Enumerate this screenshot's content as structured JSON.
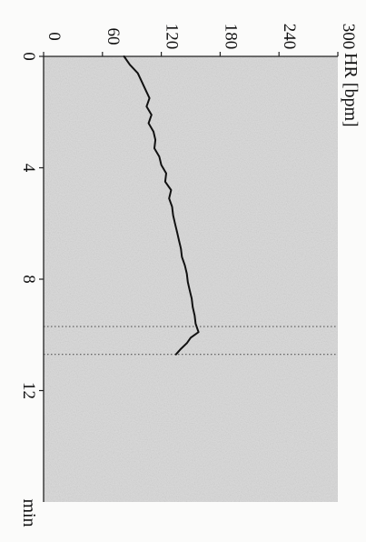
{
  "chart_data": {
    "type": "line",
    "title": "",
    "xlabel": "min",
    "ylabel": "HR [bpm]",
    "xlim": [
      0,
      16
    ],
    "ylim": [
      0,
      300
    ],
    "x_ticks": [
      0,
      4,
      8,
      12
    ],
    "y_ticks": [
      0,
      60,
      120,
      180,
      240,
      300
    ],
    "x_tick_labels": [
      "0",
      "4",
      "8",
      "12"
    ],
    "y_tick_labels": [
      "0",
      "60",
      "120",
      "180",
      "240",
      "300"
    ],
    "grid": false,
    "rotated": "90deg-clockwise",
    "vertical_markers_min": [
      9.7,
      10.7
    ],
    "colors": {
      "plot_background": "#dcdcdc",
      "line": "#111111",
      "axis": "#222222",
      "marker": "#555555"
    },
    "series": [
      {
        "x": [
          0,
          0.3,
          0.6,
          0.9,
          1.2,
          1.5,
          1.8,
          2.1,
          2.4,
          2.7,
          3.0,
          3.3,
          3.6,
          3.9,
          4.2,
          4.5,
          4.8,
          5.1,
          5.4,
          5.7,
          6.0,
          6.3,
          6.6,
          6.9,
          7.2,
          7.5,
          7.8,
          8.1,
          8.4,
          8.7,
          9.0,
          9.3,
          9.6,
          9.9,
          10.1,
          10.3,
          10.5,
          10.7
        ],
        "values": [
          82,
          88,
          96,
          100,
          104,
          108,
          105,
          110,
          107,
          112,
          114,
          113,
          118,
          120,
          125,
          124,
          130,
          128,
          131,
          132,
          134,
          136,
          138,
          140,
          141,
          144,
          146,
          147,
          149,
          151,
          152,
          154,
          155,
          158,
          150,
          146,
          140,
          135
        ]
      }
    ]
  }
}
